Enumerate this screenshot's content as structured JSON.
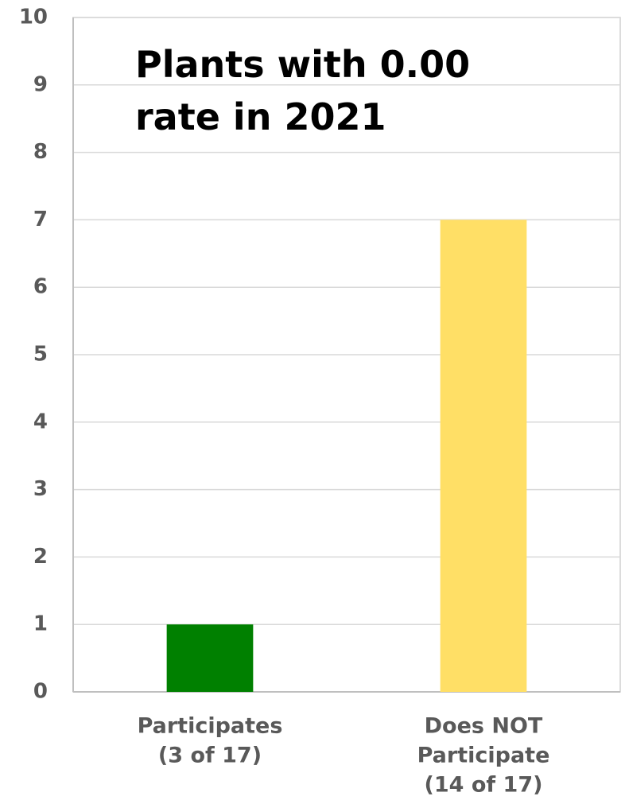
{
  "chart_data": {
    "type": "bar",
    "title": "Plants with 0.00 rate in 2021",
    "categories": [
      [
        "Participates",
        "(3 of 17)"
      ],
      [
        "Does NOT",
        "Participate",
        "(14 of 17)"
      ]
    ],
    "values": [
      1,
      7
    ],
    "colors": [
      "#008000",
      "#ffdf66"
    ],
    "ylim": [
      0,
      10
    ],
    "yticks": [
      0,
      1,
      2,
      3,
      4,
      5,
      6,
      7,
      8,
      9,
      10
    ],
    "grid": true
  }
}
